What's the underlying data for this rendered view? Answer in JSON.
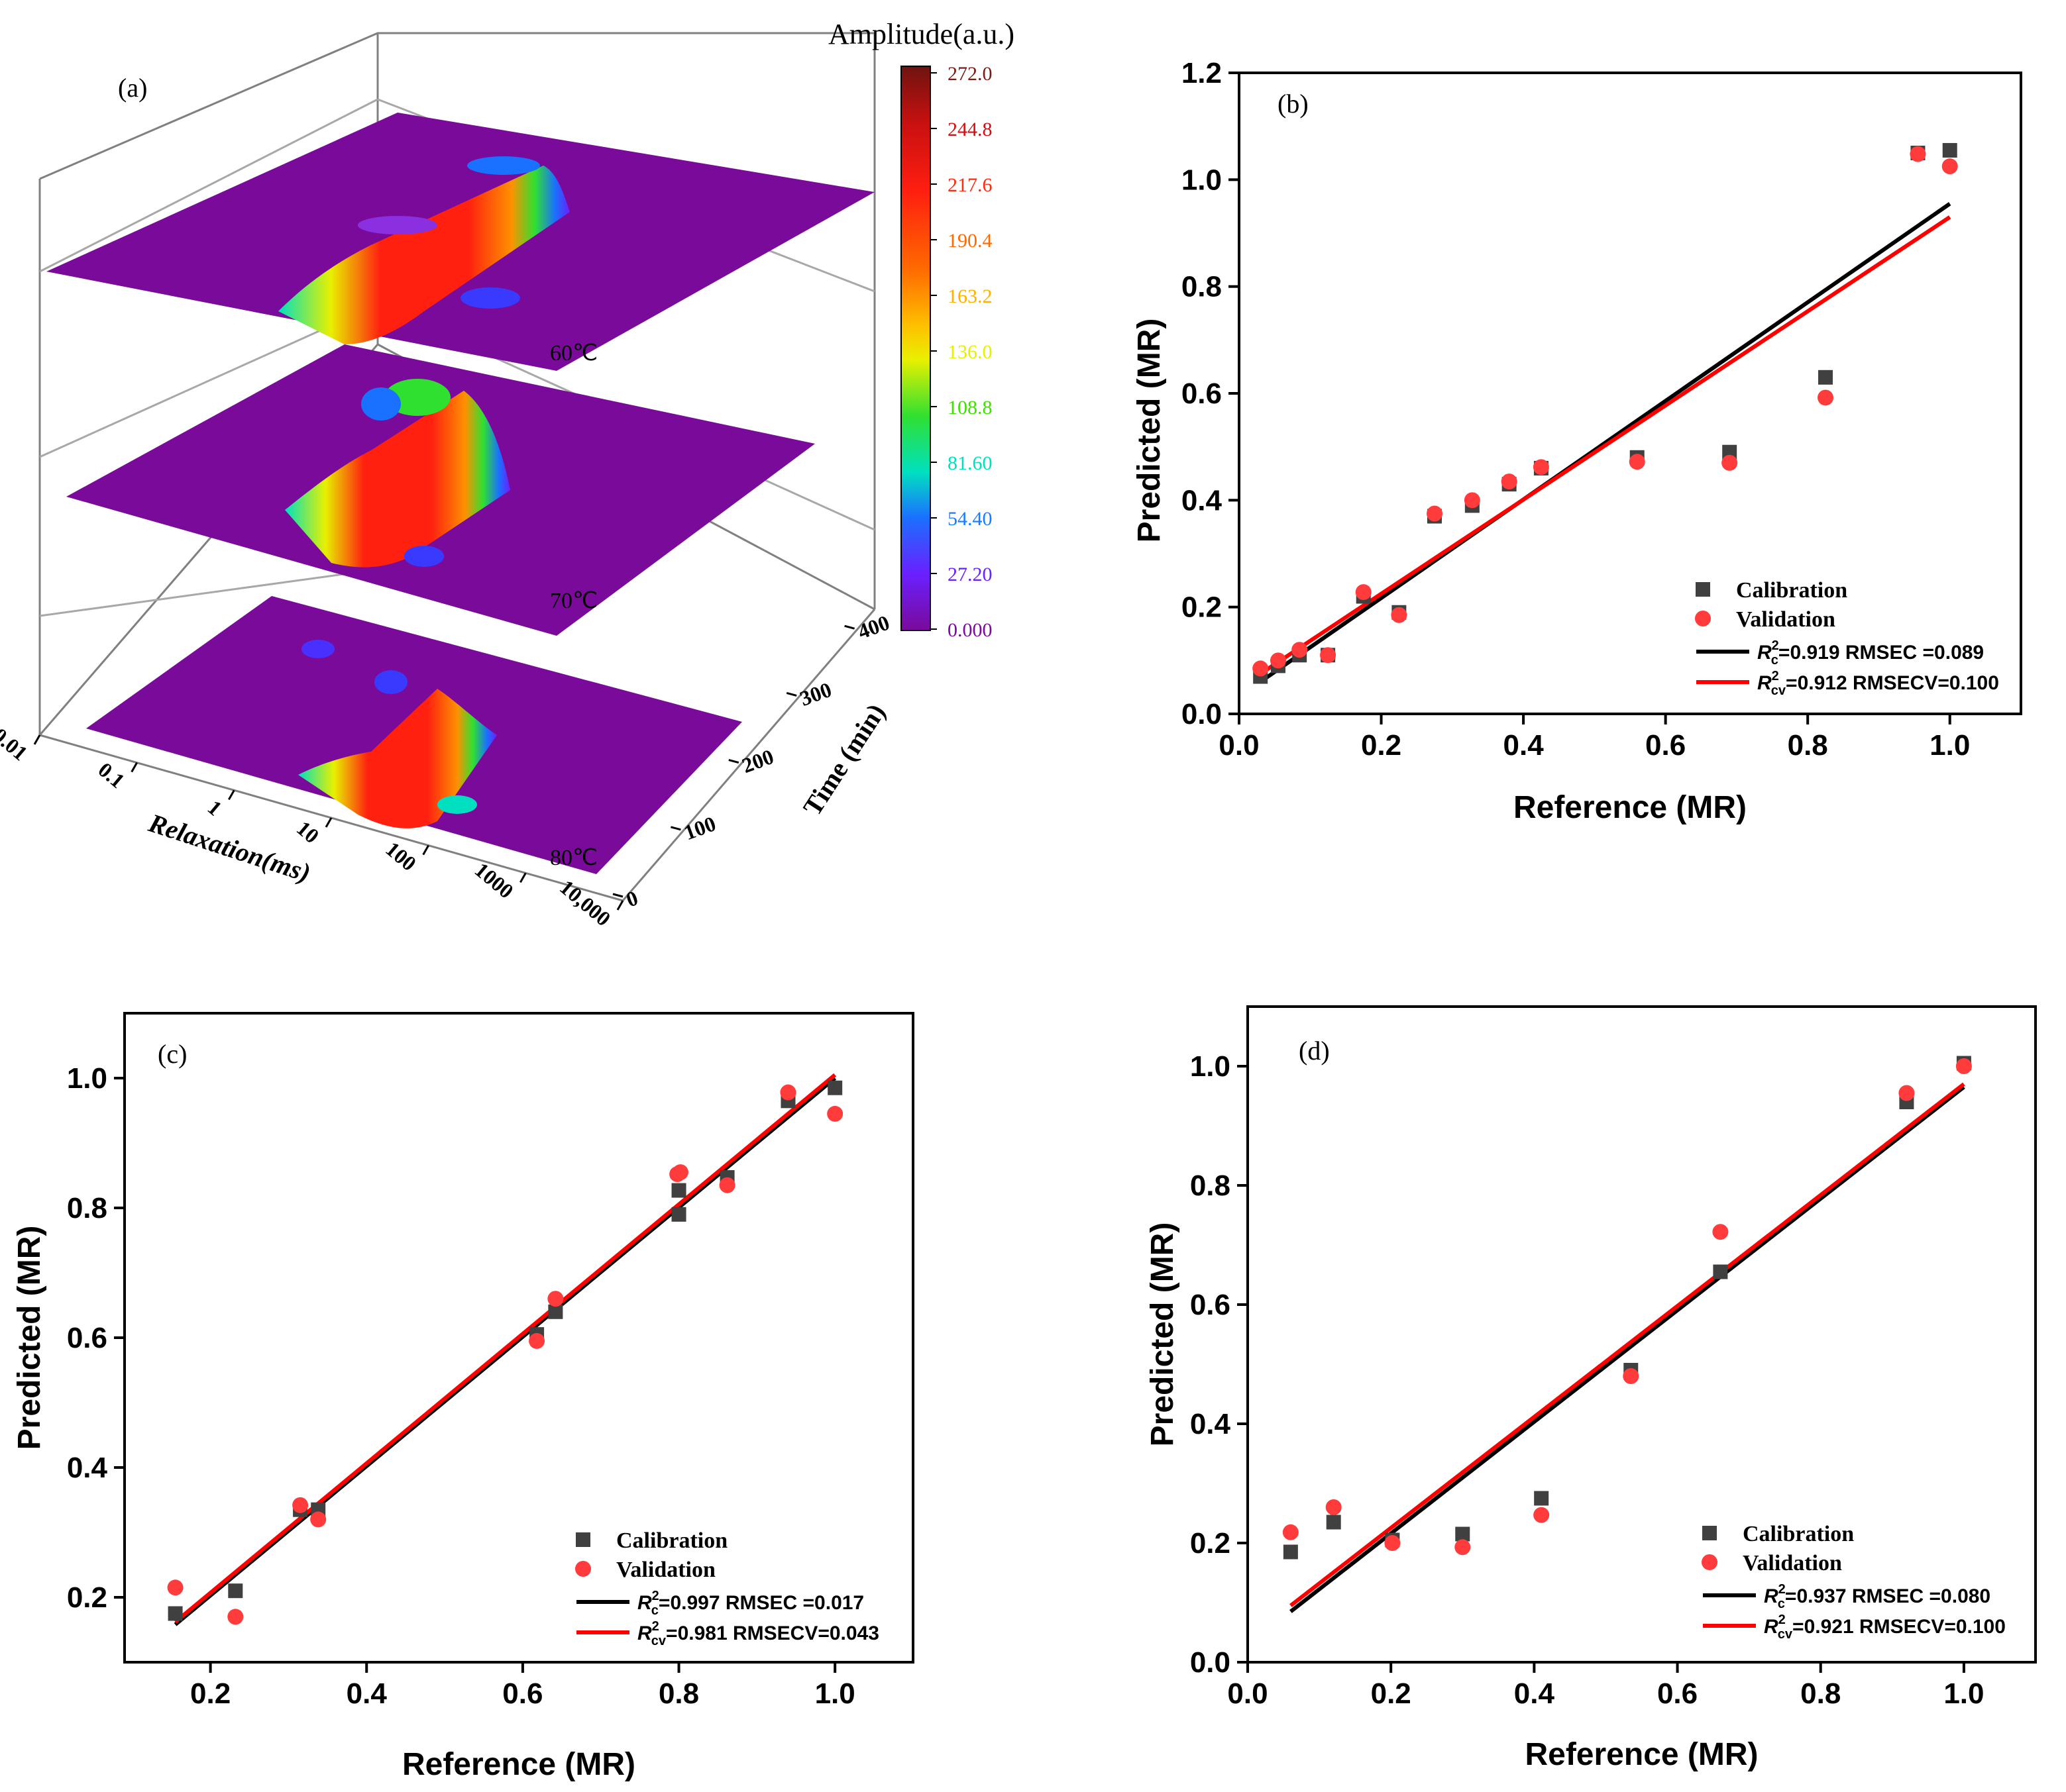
{
  "chart_data": [
    {
      "panel": "(a)",
      "type": "surface3d",
      "colorbar_title": "Amplitude(a.u.)",
      "colorbar_ticks": [
        "272.0",
        "244.8",
        "217.6",
        "190.4",
        "163.2",
        "136.0",
        "108.8",
        "81.60",
        "54.40",
        "27.20",
        "0.000"
      ],
      "colorbar_colors": [
        "#7a1a14",
        "#d01010",
        "#ff2a10",
        "#ff6a00",
        "#ffb000",
        "#e8f000",
        "#40e000",
        "#00e0c0",
        "#1a7cff",
        "#6a20ff",
        "#7a0a9a"
      ],
      "x_label": "Relaxation(ms)",
      "x_ticks": [
        "0.01",
        "0.1",
        "1",
        "10",
        "100",
        "1000",
        "10,000"
      ],
      "y_label": "Time (min)",
      "y_ticks": [
        "0",
        "100",
        "200",
        "300",
        "400"
      ],
      "layers": [
        "60℃",
        "70℃",
        "80℃"
      ]
    },
    {
      "panel": "(b)",
      "type": "scatter",
      "xlabel": "Reference (MR)",
      "ylabel": "Predicted (MR)",
      "xlim": [
        0,
        1.1
      ],
      "ylim": [
        0,
        1.2
      ],
      "xticks": [
        0.0,
        0.2,
        0.4,
        0.6,
        0.8,
        1.0
      ],
      "yticks": [
        0.0,
        0.2,
        0.4,
        0.6,
        0.8,
        1.0,
        1.2
      ],
      "xtick_labels": [
        "0.0",
        "0.2",
        "0.4",
        "0.6",
        "0.8",
        "1.0"
      ],
      "ytick_labels": [
        "0.0",
        "0.2",
        "0.4",
        "0.6",
        "0.8",
        "1.0",
        "1.2"
      ],
      "calibration": {
        "name": "Calibration",
        "x": [
          0.03,
          0.055,
          0.085,
          0.125,
          0.175,
          0.225,
          0.275,
          0.328,
          0.38,
          0.425,
          0.56,
          0.69,
          0.825,
          0.955,
          1.0
        ],
        "y": [
          0.07,
          0.09,
          0.11,
          0.11,
          0.22,
          0.19,
          0.37,
          0.39,
          0.43,
          0.46,
          0.48,
          0.49,
          0.63,
          1.05,
          1.055
        ]
      },
      "validation": {
        "name": "Validation",
        "x": [
          0.03,
          0.055,
          0.085,
          0.125,
          0.175,
          0.225,
          0.275,
          0.328,
          0.38,
          0.425,
          0.56,
          0.69,
          0.825,
          0.955,
          1.0
        ],
        "y": [
          0.085,
          0.1,
          0.12,
          0.11,
          0.228,
          0.185,
          0.375,
          0.4,
          0.435,
          0.462,
          0.472,
          0.47,
          0.592,
          1.048,
          1.025
        ]
      },
      "fit_c": {
        "x": [
          0.03,
          1.0
        ],
        "y": [
          0.06,
          0.955
        ]
      },
      "fit_cv": {
        "x": [
          0.03,
          1.0
        ],
        "y": [
          0.075,
          0.93
        ]
      },
      "legend": {
        "calibration": "Calibration",
        "validation": "Validation",
        "line_c_r2": "R",
        "line_c_sub": "c",
        "line_c_rest": "=0.919 RMSEC =0.089",
        "line_cv_r2": "R",
        "line_cv_sub": "cv",
        "line_cv_rest": "=0.912 RMSECV=0.100"
      }
    },
    {
      "panel": "(c)",
      "type": "scatter",
      "xlabel": "Reference (MR)",
      "ylabel": "Predicted (MR)",
      "xlim": [
        0.09,
        1.1
      ],
      "ylim": [
        0.1,
        1.1
      ],
      "xticks": [
        0.2,
        0.4,
        0.6,
        0.8,
        1.0
      ],
      "yticks": [
        0.2,
        0.4,
        0.6,
        0.8,
        1.0
      ],
      "xtick_labels": [
        "0.2",
        "0.4",
        "0.6",
        "0.8",
        "1.0"
      ],
      "ytick_labels": [
        "0.2",
        "0.4",
        "0.6",
        "0.8",
        "1.0"
      ],
      "calibration": {
        "name": "Calibration",
        "x": [
          0.155,
          0.232,
          0.315,
          0.338,
          0.618,
          0.642,
          0.8,
          0.8,
          0.862,
          0.94,
          1.0
        ],
        "y": [
          0.175,
          0.21,
          0.335,
          0.335,
          0.605,
          0.64,
          0.79,
          0.827,
          0.847,
          0.965,
          0.985
        ]
      },
      "validation": {
        "name": "Validation",
        "x": [
          0.155,
          0.232,
          0.315,
          0.338,
          0.618,
          0.642,
          0.798,
          0.802,
          0.862,
          0.94,
          1.0
        ],
        "y": [
          0.215,
          0.17,
          0.342,
          0.32,
          0.595,
          0.66,
          0.852,
          0.855,
          0.835,
          0.978,
          0.945
        ]
      },
      "fit_c": {
        "x": [
          0.155,
          1.0
        ],
        "y": [
          0.158,
          1.0
        ]
      },
      "fit_cv": {
        "x": [
          0.155,
          1.0
        ],
        "y": [
          0.162,
          1.005
        ]
      },
      "legend": {
        "calibration": "Calibration",
        "validation": "Validation",
        "line_c_r2": "R",
        "line_c_sub": "c",
        "line_c_rest": "=0.997  RMSEC =0.017",
        "line_cv_r2": "R",
        "line_cv_sub": "cv",
        "line_cv_rest": "=0.981  RMSECV=0.043"
      }
    },
    {
      "panel": "(d)",
      "type": "scatter",
      "xlabel": "Reference (MR)",
      "ylabel": "Predicted (MR)",
      "xlim": [
        0,
        1.1
      ],
      "ylim": [
        0,
        1.1
      ],
      "xticks": [
        0.0,
        0.2,
        0.4,
        0.6,
        0.8,
        1.0
      ],
      "yticks": [
        0.0,
        0.2,
        0.4,
        0.6,
        0.8,
        1.0
      ],
      "xtick_labels": [
        "0.0",
        "0.2",
        "0.4",
        "0.6",
        "0.8",
        "1.0"
      ],
      "ytick_labels": [
        "0.0",
        "0.2",
        "0.4",
        "0.6",
        "0.8",
        "1.0"
      ],
      "calibration": {
        "name": "Calibration",
        "x": [
          0.06,
          0.12,
          0.202,
          0.3,
          0.41,
          0.535,
          0.66,
          0.92,
          1.0
        ],
        "y": [
          0.185,
          0.235,
          0.205,
          0.215,
          0.275,
          0.49,
          0.655,
          0.94,
          1.005
        ]
      },
      "validation": {
        "name": "Validation",
        "x": [
          0.06,
          0.12,
          0.202,
          0.3,
          0.41,
          0.535,
          0.66,
          0.92,
          1.0
        ],
        "y": [
          0.218,
          0.26,
          0.2,
          0.193,
          0.247,
          0.48,
          0.722,
          0.955,
          1.0
        ]
      },
      "fit_c": {
        "x": [
          0.06,
          1.0
        ],
        "y": [
          0.085,
          0.965
        ]
      },
      "fit_cv": {
        "x": [
          0.06,
          1.0
        ],
        "y": [
          0.095,
          0.97
        ]
      },
      "legend": {
        "calibration": "Calibration",
        "validation": "Validation",
        "line_c_r2": "R",
        "line_c_sub": "c",
        "line_c_rest": "=0.937  RMSEC =0.080",
        "line_cv_r2": "R",
        "line_cv_sub": "cv",
        "line_cv_rest": "=0.921  RMSECV=0.100"
      }
    }
  ],
  "colors": {
    "calibration": "#404040",
    "validation": "#ff3b3b",
    "fit_c": "#000000",
    "fit_cv": "#ff0000",
    "surface_base": "#7a0a9a"
  }
}
